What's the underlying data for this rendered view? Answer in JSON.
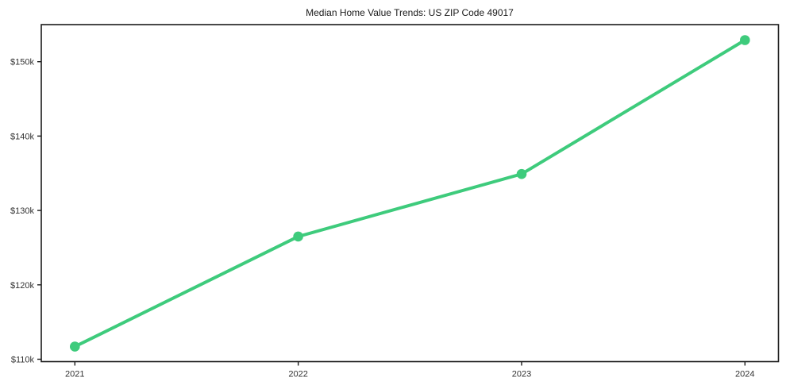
{
  "chart_data": {
    "type": "line",
    "title": "Median Home Value Trends: US ZIP Code 49017",
    "x_labels": [
      "2021",
      "2022",
      "2023",
      "2024"
    ],
    "series": [
      {
        "name": "Median Home Value",
        "values_usd_thousands": [
          111.7,
          126.5,
          134.9,
          152.9
        ]
      }
    ],
    "y_ticks": [
      {
        "value": 110,
        "label": "$110k"
      },
      {
        "value": 120,
        "label": "$120k"
      },
      {
        "value": 130,
        "label": "$130k"
      },
      {
        "value": 140,
        "label": "$140k"
      },
      {
        "value": 150,
        "label": "$150k"
      }
    ],
    "ylim_usd_thousands": [
      109.6,
      155.0
    ],
    "xlabel": "",
    "ylabel": "",
    "grid": false,
    "legend": "none",
    "colors": {
      "line": "#3ecb7c",
      "marker": "#3ecb7c",
      "spine": "#1c1c1c",
      "tick": "#1c1c1c",
      "tick_label": "#333333",
      "title": "#1a1a1a",
      "background": "#ffffff"
    }
  }
}
